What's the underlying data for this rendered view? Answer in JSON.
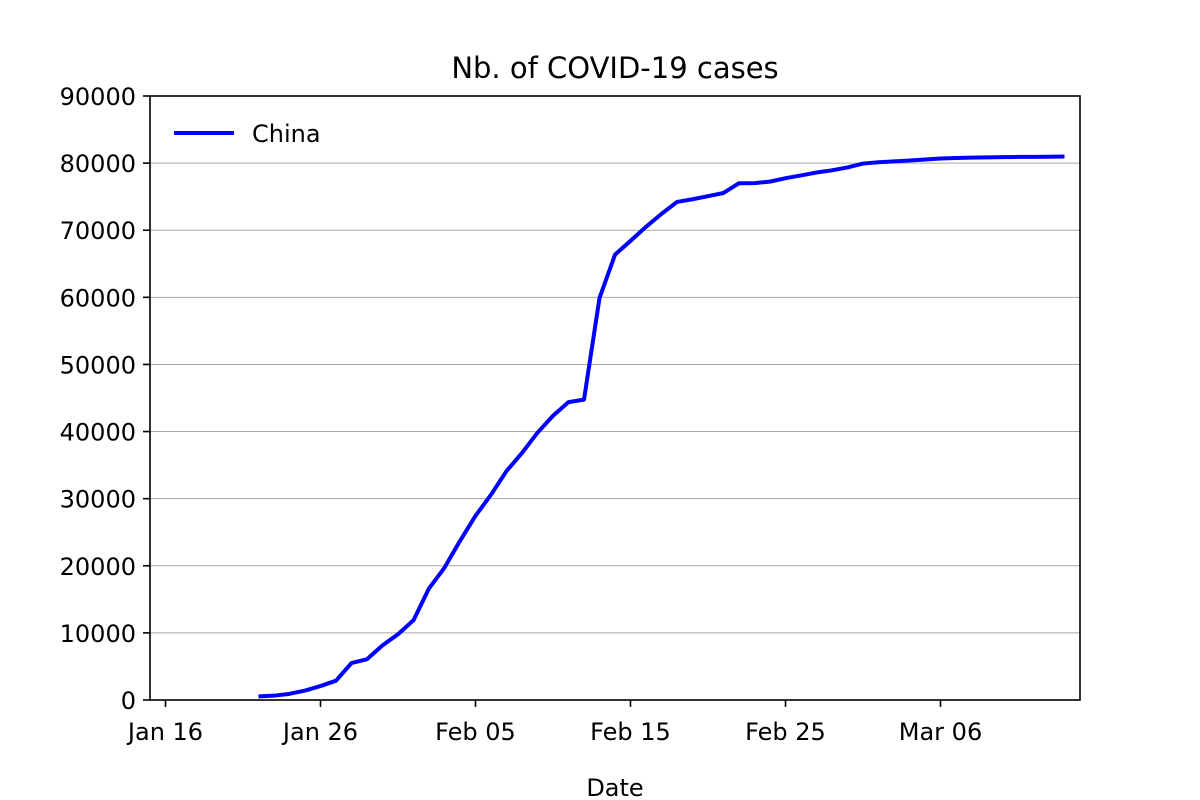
{
  "chart_data": {
    "type": "line",
    "title": "Nb. of COVID-19 cases",
    "xlabel": "Date",
    "ylabel": "",
    "xlim": [
      "2020-01-15",
      "2020-03-15"
    ],
    "ylim": [
      0,
      90000
    ],
    "grid": "horizontal",
    "legend_position": "top-left",
    "x_ticks": [
      {
        "date": "2020-01-16",
        "label": "Jan 16"
      },
      {
        "date": "2020-01-26",
        "label": "Jan 26"
      },
      {
        "date": "2020-02-05",
        "label": "Feb 05"
      },
      {
        "date": "2020-02-15",
        "label": "Feb 15"
      },
      {
        "date": "2020-02-25",
        "label": "Feb 25"
      },
      {
        "date": "2020-03-06",
        "label": "Mar 06"
      }
    ],
    "y_ticks": [
      0,
      10000,
      20000,
      30000,
      40000,
      50000,
      60000,
      70000,
      80000,
      90000
    ],
    "series": [
      {
        "name": "China",
        "color": "#0000ff",
        "x": [
          "2020-01-22",
          "2020-01-23",
          "2020-01-24",
          "2020-01-25",
          "2020-01-26",
          "2020-01-27",
          "2020-01-28",
          "2020-01-29",
          "2020-01-30",
          "2020-01-31",
          "2020-02-01",
          "2020-02-02",
          "2020-02-03",
          "2020-02-04",
          "2020-02-05",
          "2020-02-06",
          "2020-02-07",
          "2020-02-08",
          "2020-02-09",
          "2020-02-10",
          "2020-02-11",
          "2020-02-12",
          "2020-02-13",
          "2020-02-14",
          "2020-02-15",
          "2020-02-16",
          "2020-02-17",
          "2020-02-18",
          "2020-02-19",
          "2020-02-20",
          "2020-02-21",
          "2020-02-22",
          "2020-02-23",
          "2020-02-24",
          "2020-02-25",
          "2020-02-26",
          "2020-02-27",
          "2020-02-28",
          "2020-02-29",
          "2020-03-01",
          "2020-03-02",
          "2020-03-03",
          "2020-03-04",
          "2020-03-05",
          "2020-03-06",
          "2020-03-07",
          "2020-03-08",
          "2020-03-09",
          "2020-03-10",
          "2020-03-11",
          "2020-03-12",
          "2020-03-13",
          "2020-03-14"
        ],
        "values": [
          548,
          643,
          920,
          1406,
          2075,
          2877,
          5509,
          6087,
          8141,
          9802,
          11891,
          16630,
          19716,
          23707,
          27440,
          30587,
          34110,
          36814,
          39829,
          42354,
          44386,
          44759,
          59895,
          66358,
          68413,
          70513,
          72434,
          74211,
          74619,
          75077,
          75550,
          77001,
          77022,
          77241,
          77754,
          78166,
          78600,
          78928,
          79356,
          79932,
          80136,
          80261,
          80386,
          80537,
          80690,
          80770,
          80823,
          80860,
          80887,
          80921,
          80932,
          80945,
          80977
        ]
      }
    ]
  }
}
